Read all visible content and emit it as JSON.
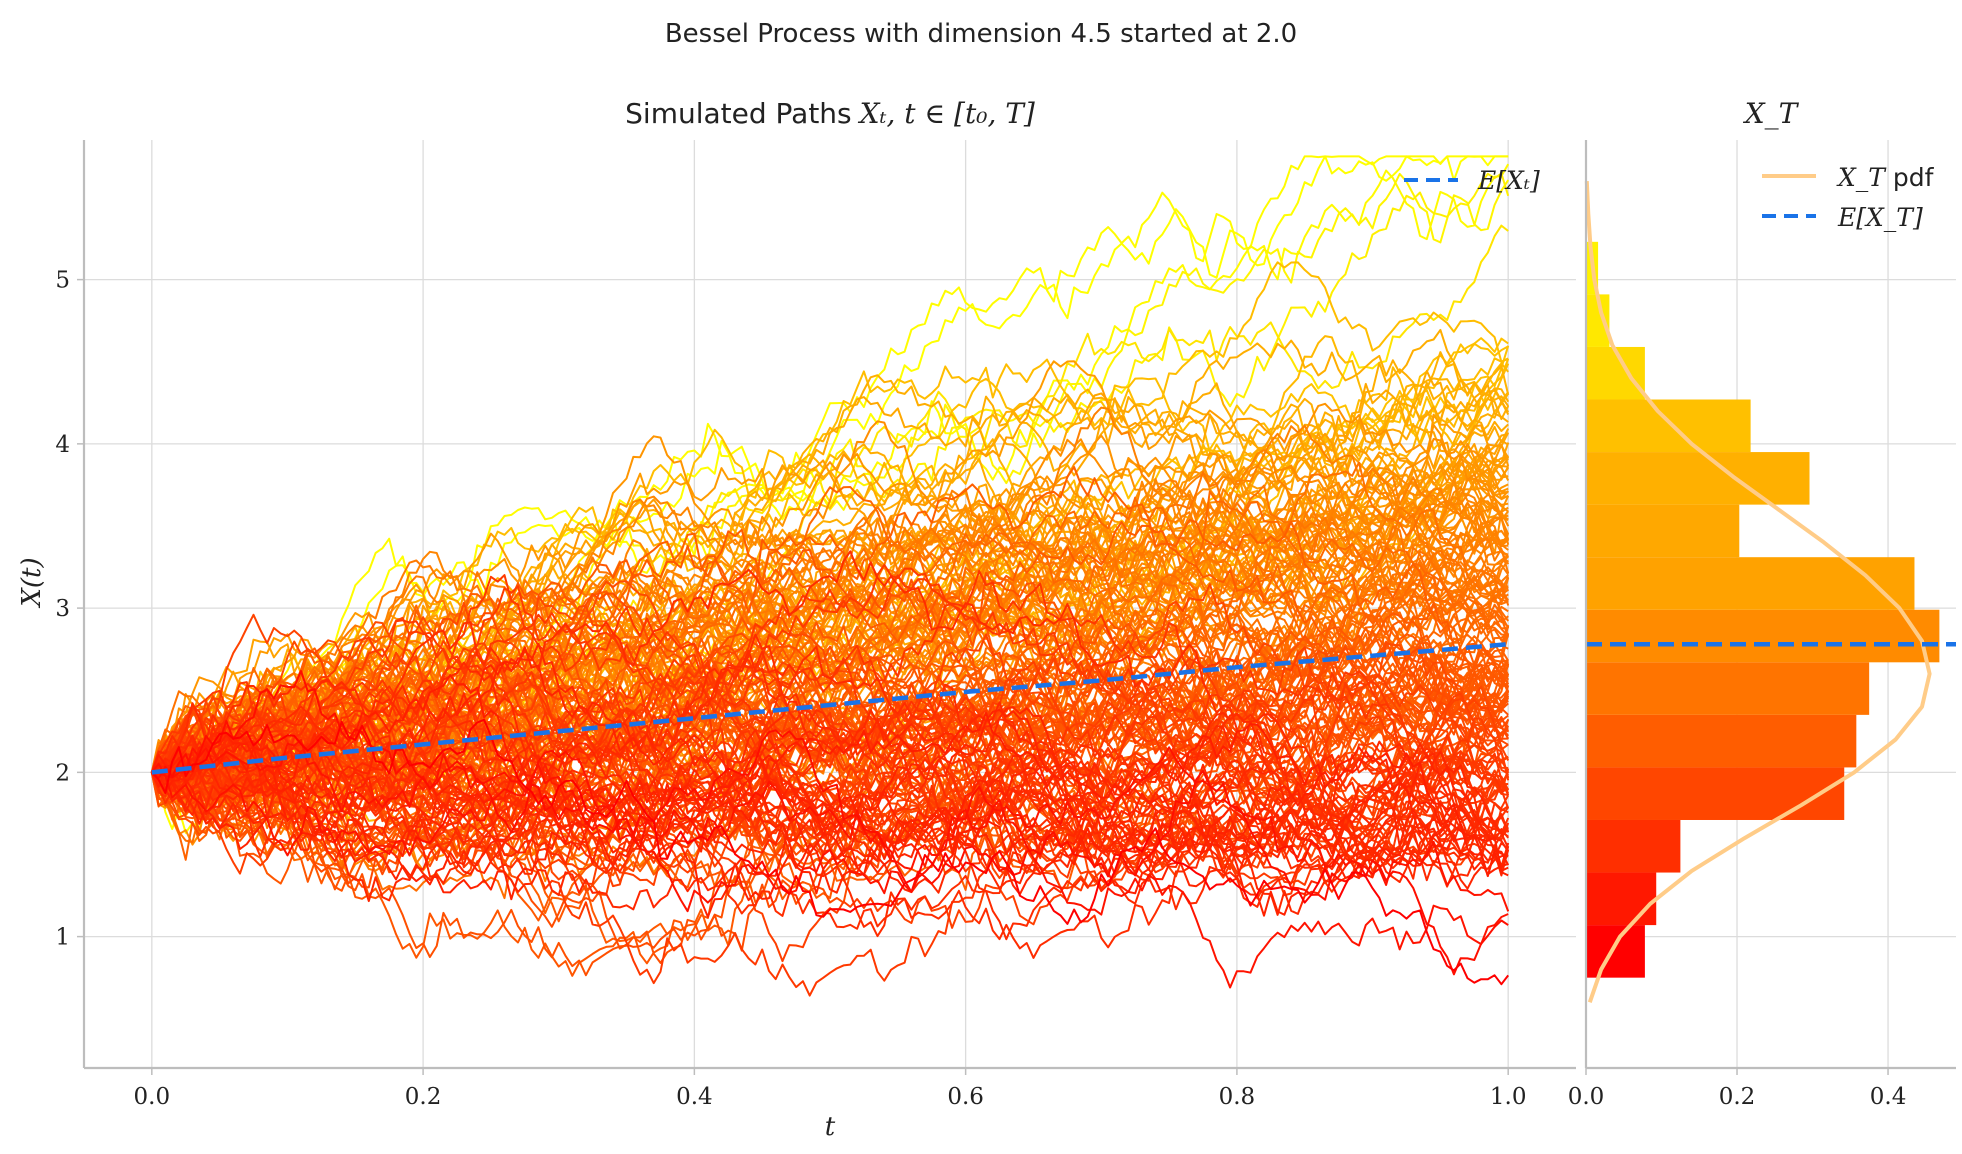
{
  "figure": {
    "suptitle": "Bessel Process with dimension 4.5 started at 2.0"
  },
  "chart_data": [
    {
      "type": "line",
      "title_prefix": "Simulated Paths",
      "title_math": "Xₜ, t ∈ [t₀, T]",
      "xlabel": "t",
      "ylabel": "X(t)",
      "xlim": [
        -0.05,
        1.05
      ],
      "ylim": [
        0.2,
        5.85
      ],
      "xticks": [
        0.0,
        0.2,
        0.4,
        0.6,
        0.8,
        1.0
      ],
      "xtick_labels": [
        "0.0",
        "0.2",
        "0.4",
        "0.6",
        "0.8",
        "1.0"
      ],
      "yticks": [
        1,
        2,
        3,
        4,
        5
      ],
      "ytick_labels": [
        "1",
        "2",
        "3",
        "4",
        "5"
      ],
      "grid": true,
      "legend_position": "top-right",
      "legend": [
        {
          "label": "E[Xₜ]",
          "style": "dashed",
          "color": "#1a73e8"
        }
      ],
      "paths": {
        "count": 200,
        "start_value": 2.0,
        "t_start": 0.0,
        "t_end": 1.0,
        "final_values_min": 0.75,
        "final_values_max": 5.4,
        "colormap": "autumn",
        "colormap_low": "#ff0000",
        "colormap_high": "#ffff00"
      },
      "expectation": {
        "label": "E[Xₜ]",
        "color": "#1a73e8",
        "x": [
          0.0,
          0.1,
          0.2,
          0.3,
          0.4,
          0.5,
          0.6,
          0.7,
          0.8,
          0.9,
          1.0
        ],
        "y": [
          2.0,
          2.09,
          2.17,
          2.25,
          2.33,
          2.41,
          2.49,
          2.56,
          2.64,
          2.71,
          2.78
        ]
      }
    },
    {
      "type": "bar",
      "orientation": "horizontal",
      "title_math": "X_T",
      "xlim": [
        0,
        0.49
      ],
      "ylim": [
        0.2,
        5.85
      ],
      "xticks": [
        0.0,
        0.2,
        0.4
      ],
      "xtick_labels": [
        "0.0",
        "0.2",
        "0.4"
      ],
      "grid": true,
      "legend_position": "top-right",
      "legend": [
        {
          "label_math": "X_T",
          "label_suffix": " pdf",
          "style": "solid",
          "color": "#ffcc88"
        },
        {
          "label_math": "E[X_T]",
          "style": "dashed",
          "color": "#1a73e8"
        }
      ],
      "bin_edges": [
        0.75,
        1.07,
        1.39,
        1.71,
        2.03,
        2.35,
        2.67,
        2.99,
        3.31,
        3.63,
        3.95,
        4.27,
        4.59,
        4.91,
        5.23,
        5.55
      ],
      "values": [
        0.078,
        0.093,
        0.125,
        0.342,
        0.358,
        0.375,
        0.468,
        0.435,
        0.203,
        0.296,
        0.218,
        0.078,
        0.031,
        0.016,
        0.0
      ],
      "bar_colors": [
        "#ff0000",
        "#ff1800",
        "#ff2f00",
        "#ff4600",
        "#ff5d00",
        "#ff7400",
        "#ff8b00",
        "#ffa200",
        "#ffa800",
        "#ffb000",
        "#ffc000",
        "#ffd800",
        "#ffe800",
        "#fff200",
        "#ffff00"
      ],
      "pdf": {
        "label": "X_T pdf",
        "color": "#ffcc88",
        "y": [
          0.6,
          0.8,
          1.0,
          1.2,
          1.4,
          1.6,
          1.8,
          2.0,
          2.2,
          2.4,
          2.6,
          2.8,
          3.0,
          3.2,
          3.4,
          3.6,
          3.8,
          4.0,
          4.2,
          4.4,
          4.6,
          4.8,
          5.0,
          5.2,
          5.4,
          5.6
        ],
        "x": [
          0.005,
          0.02,
          0.045,
          0.085,
          0.14,
          0.21,
          0.285,
          0.355,
          0.41,
          0.445,
          0.455,
          0.445,
          0.415,
          0.37,
          0.315,
          0.255,
          0.195,
          0.14,
          0.095,
          0.06,
          0.035,
          0.02,
          0.011,
          0.006,
          0.003,
          0.001
        ]
      },
      "expectation": {
        "label": "E[X_T]",
        "value": 2.78,
        "color": "#1a73e8"
      }
    }
  ]
}
